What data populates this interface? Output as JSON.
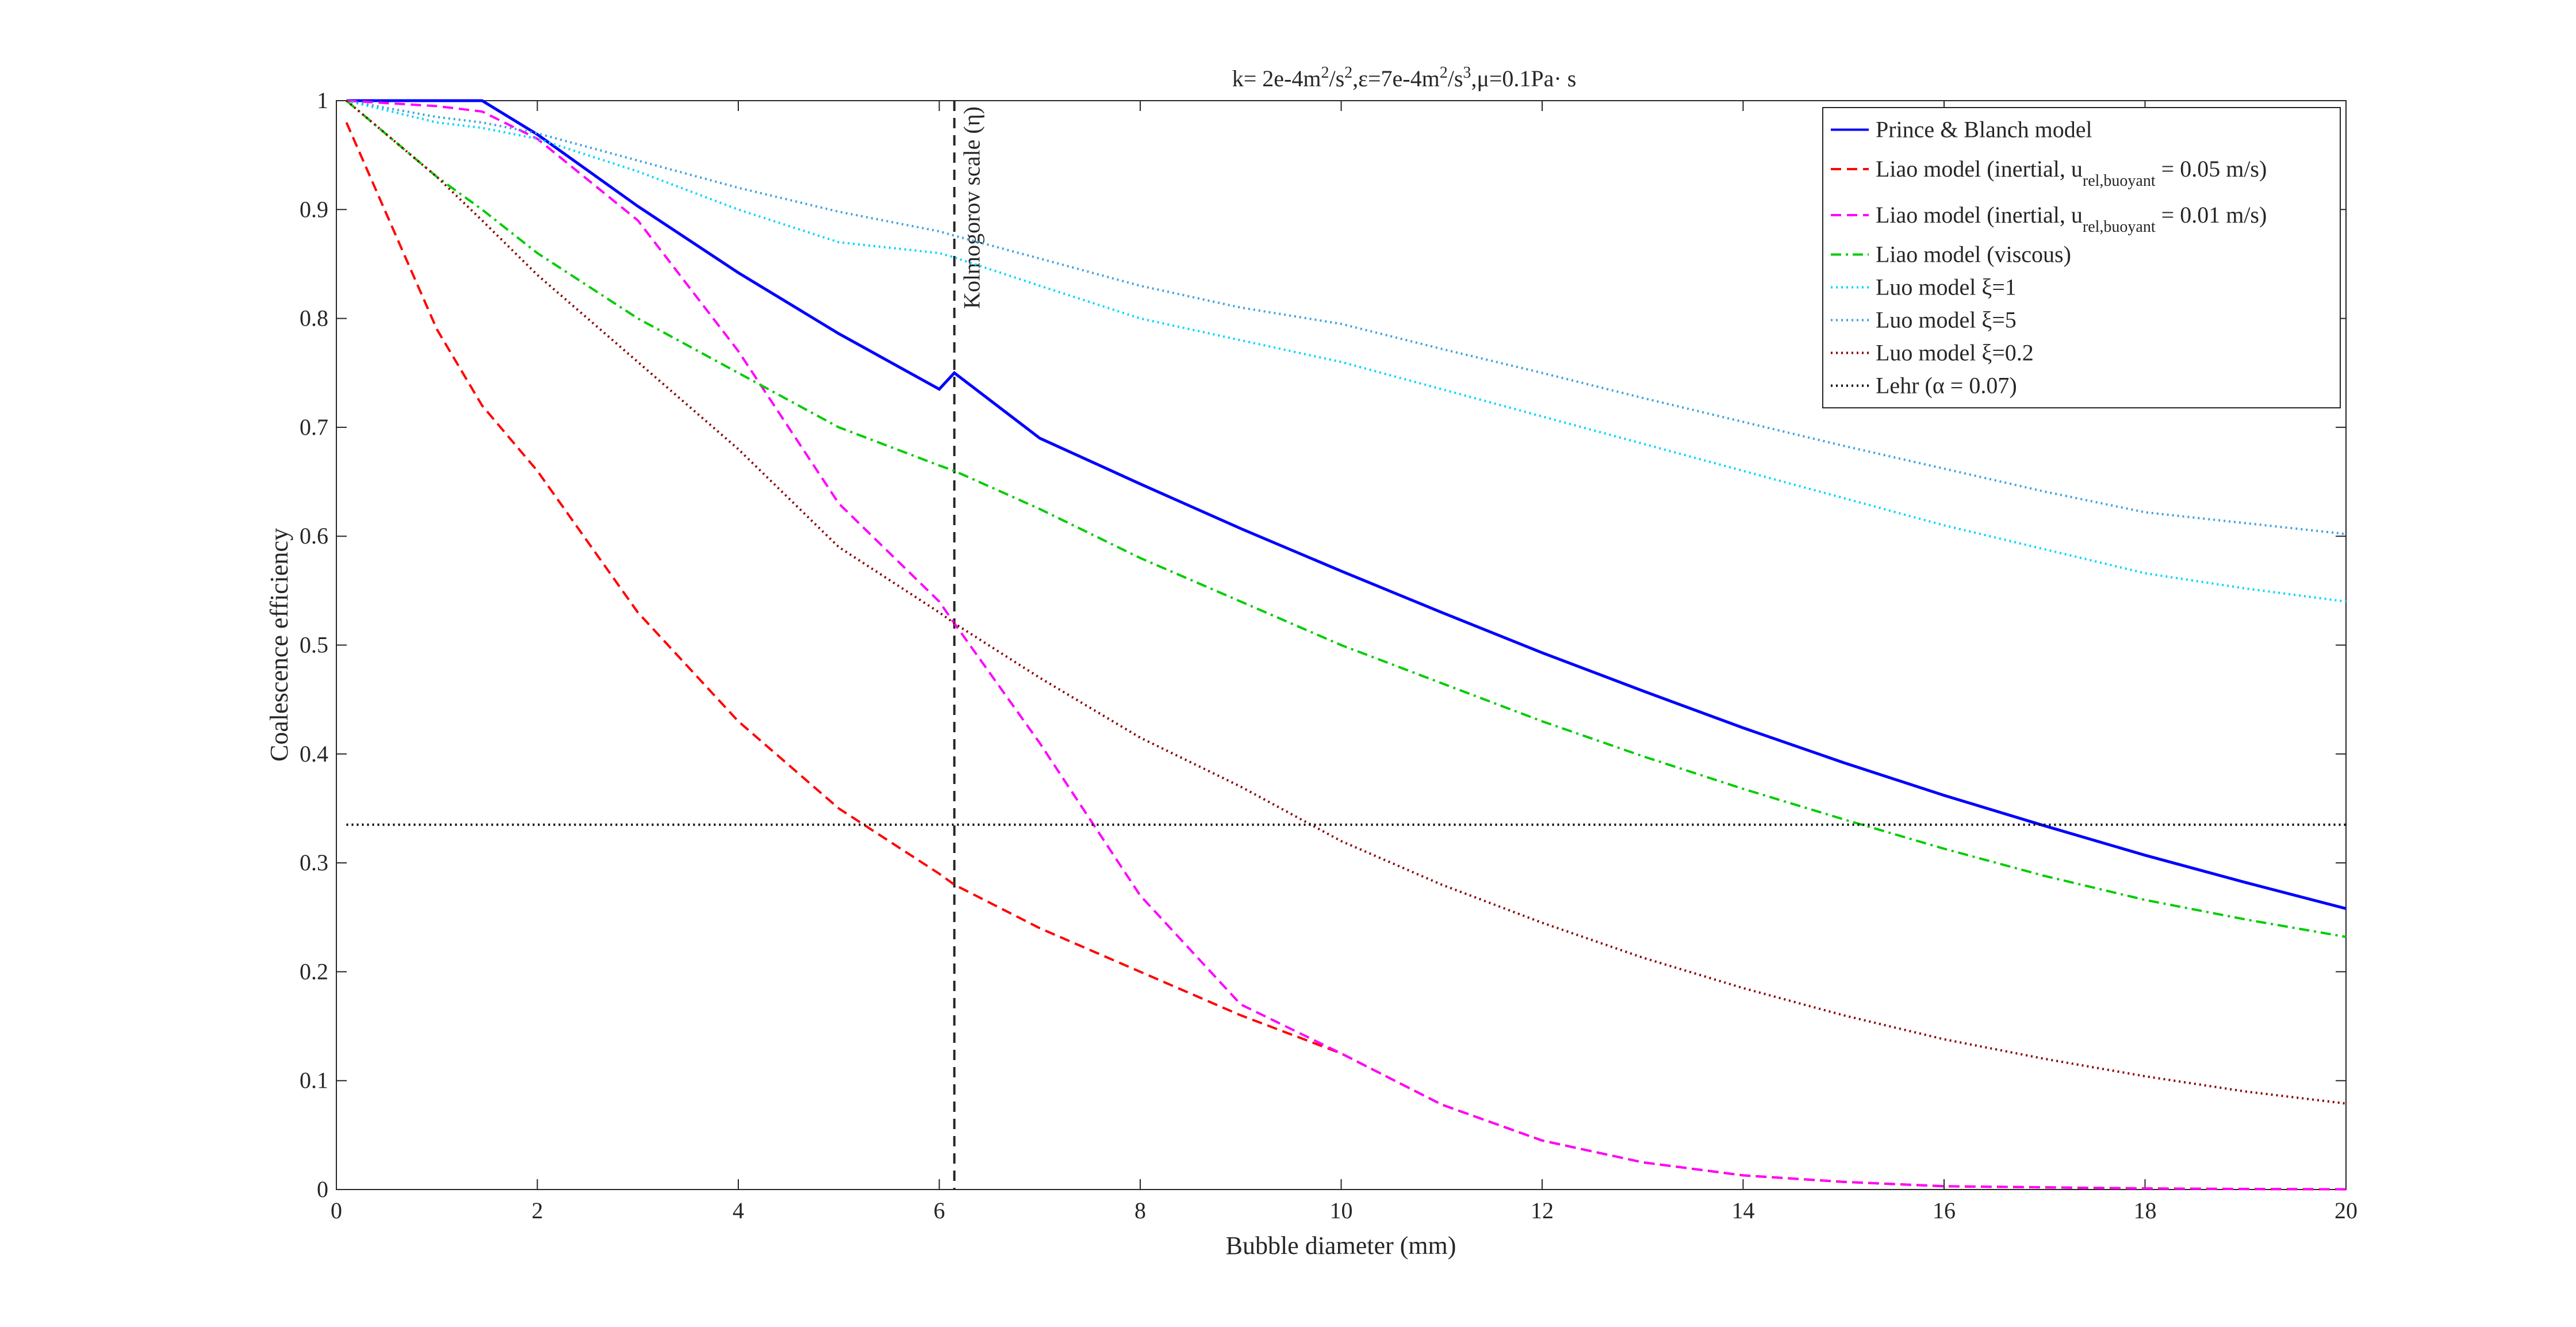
{
  "chart_data": {
    "type": "line",
    "title": "k= 2e-4m²/s²,ε=7e-4m²/s³,μ=0.1Pa· s",
    "xlabel": "Bubble diameter (mm)",
    "ylabel": "Coalescence efficiency",
    "xlim": [
      0,
      20
    ],
    "ylim": [
      0,
      1
    ],
    "x_ticks": [
      "0",
      "2",
      "4",
      "6",
      "8",
      "10",
      "12",
      "14",
      "16",
      "18",
      "20"
    ],
    "y_ticks": [
      "0",
      "0.1",
      "0.2",
      "0.3",
      "0.4",
      "0.5",
      "0.6",
      "0.7",
      "0.8",
      "0.9",
      "1"
    ],
    "grid": false,
    "legend_position": "top-right",
    "annotation": {
      "text": "Kolmogorov scale (η)",
      "x": 6.15
    },
    "x": [
      0.1,
      1,
      1.45,
      2,
      3,
      4,
      5,
      6,
      6.15,
      7,
      8,
      9,
      10,
      11,
      12,
      13,
      14,
      15,
      16,
      17,
      18,
      19,
      20
    ],
    "series": [
      {
        "name": "Prince & Blanch model",
        "color": "#0000ff",
        "dash": "solid",
        "values": [
          1.0,
          1.0,
          1.0,
          0.969,
          0.903,
          0.842,
          0.786,
          0.735,
          0.75,
          0.69,
          0.648,
          0.607,
          0.568,
          0.53,
          0.493,
          0.458,
          0.424,
          0.392,
          0.362,
          0.334,
          0.307,
          0.282,
          0.258
        ]
      },
      {
        "name": "Liao model (inertial, u_rel,buoyant = 0.05 m/s)",
        "color": "#ff0000",
        "dash": "dashed",
        "values": [
          0.98,
          0.79,
          0.72,
          0.66,
          0.53,
          0.43,
          0.35,
          0.29,
          0.28,
          0.24,
          0.2,
          0.16,
          0.125,
          0.078,
          0.045,
          0.025,
          0.013,
          0.007,
          0.003,
          0.002,
          0.001,
          0.0005,
          0.0002
        ]
      },
      {
        "name": "Liao model (inertial, u_rel,buoyant = 0.01 m/s)",
        "color": "#ff00ff",
        "dash": "dashed",
        "values": [
          1.0,
          0.995,
          0.99,
          0.965,
          0.89,
          0.77,
          0.63,
          0.54,
          0.52,
          0.41,
          0.27,
          0.17,
          0.125,
          0.078,
          0.045,
          0.025,
          0.013,
          0.007,
          0.003,
          0.002,
          0.001,
          0.0005,
          0.0002
        ]
      },
      {
        "name": "Liao model (viscous)",
        "color": "#00cc00",
        "dash": "dashdot",
        "values": [
          1.0,
          0.93,
          0.9,
          0.86,
          0.8,
          0.75,
          0.7,
          0.665,
          0.66,
          0.625,
          0.58,
          0.54,
          0.5,
          0.465,
          0.43,
          0.398,
          0.368,
          0.34,
          0.313,
          0.288,
          0.266,
          0.248,
          0.232
        ]
      },
      {
        "name": "Luo model ξ=1",
        "color": "#00d7ff",
        "dash": "dotted",
        "values": [
          1.0,
          0.98,
          0.975,
          0.965,
          0.935,
          0.9,
          0.87,
          0.86,
          0.856,
          0.83,
          0.8,
          0.78,
          0.76,
          0.735,
          0.71,
          0.685,
          0.66,
          0.635,
          0.61,
          0.588,
          0.566,
          0.552,
          0.54
        ]
      },
      {
        "name": "Luo model ξ=5",
        "color": "#3fa2e0",
        "dash": "dotted",
        "values": [
          1.0,
          0.985,
          0.98,
          0.97,
          0.945,
          0.92,
          0.898,
          0.88,
          0.876,
          0.855,
          0.83,
          0.81,
          0.795,
          0.772,
          0.75,
          0.727,
          0.705,
          0.683,
          0.662,
          0.641,
          0.622,
          0.612,
          0.602
        ]
      },
      {
        "name": "Luo model ξ=0.2",
        "color": "#8b0000",
        "dash": "dotted",
        "values": [
          1.0,
          0.93,
          0.89,
          0.84,
          0.76,
          0.68,
          0.59,
          0.53,
          0.52,
          0.47,
          0.415,
          0.37,
          0.32,
          0.28,
          0.245,
          0.213,
          0.185,
          0.16,
          0.138,
          0.12,
          0.104,
          0.09,
          0.079
        ]
      },
      {
        "name": "Lehr (α = 0.07)",
        "color": "#000000",
        "dash": "dotted",
        "values": [
          0.335,
          0.335,
          0.335,
          0.335,
          0.335,
          0.335,
          0.335,
          0.335,
          0.335,
          0.335,
          0.335,
          0.335,
          0.335,
          0.335,
          0.335,
          0.335,
          0.335,
          0.335,
          0.335,
          0.335,
          0.335,
          0.335,
          0.335
        ]
      }
    ]
  }
}
